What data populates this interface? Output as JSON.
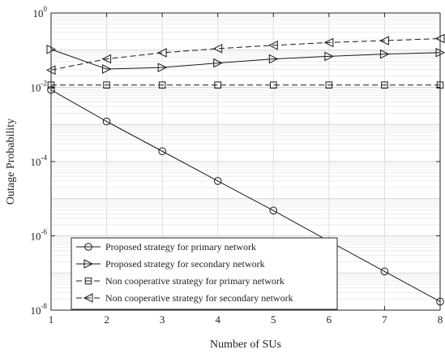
{
  "chart_data": {
    "type": "line",
    "title": "",
    "xlabel": "Number of SUs",
    "ylabel": "Outage Probability",
    "x": [
      1,
      2,
      3,
      4,
      5,
      6,
      7,
      8
    ],
    "xlim": [
      1,
      8
    ],
    "ylim": [
      1e-08,
      1
    ],
    "yscale": "log",
    "grid": true,
    "legend_position": "bottom-left",
    "x_ticks": [
      "1",
      "2",
      "3",
      "4",
      "5",
      "6",
      "7",
      "8"
    ],
    "y_ticks": [
      {
        "base": "10",
        "exp": "-8",
        "value": 1e-08
      },
      {
        "base": "10",
        "exp": "-6",
        "value": 1e-06
      },
      {
        "base": "10",
        "exp": "-4",
        "value": 0.0001
      },
      {
        "base": "10",
        "exp": "-2",
        "value": 0.01
      },
      {
        "base": "10",
        "exp": "0",
        "value": 1
      }
    ],
    "series": [
      {
        "name": "Proposed strategy for primary network",
        "marker": "circle",
        "dash": "solid",
        "values": [
          0.0085,
          0.0012,
          0.00019,
          3e-05,
          4.8e-06,
          7.2e-07,
          1.1e-07,
          1.7e-08
        ]
      },
      {
        "name": "Proposed strategy for secondary network",
        "marker": "triangle-right",
        "dash": "solid",
        "values": [
          0.105,
          0.031,
          0.034,
          0.045,
          0.058,
          0.068,
          0.078,
          0.086
        ]
      },
      {
        "name": "Non cooperative strategy for primary network",
        "marker": "square",
        "dash": "dashed",
        "values": [
          0.0115,
          0.0115,
          0.0115,
          0.0115,
          0.0115,
          0.0115,
          0.0115,
          0.0115
        ]
      },
      {
        "name": "Non cooperative strategy for secondary network",
        "marker": "triangle-left",
        "dash": "dashed",
        "values": [
          0.029,
          0.058,
          0.085,
          0.11,
          0.135,
          0.16,
          0.18,
          0.205
        ]
      }
    ]
  }
}
